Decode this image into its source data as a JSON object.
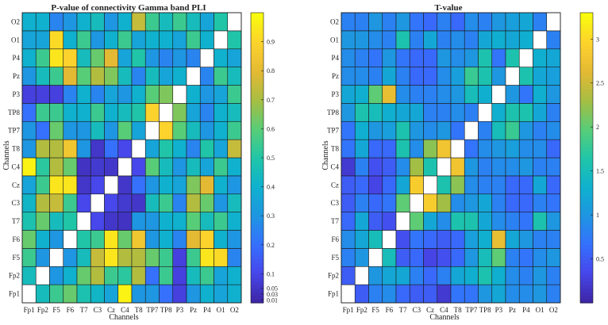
{
  "chart_data": [
    {
      "type": "heatmap",
      "title": "P-value of connectivity Gamma band PLI",
      "xlabel": "Channels",
      "ylabel": "Channels",
      "x_categories": [
        "Fp1",
        "Fp2",
        "F5",
        "F6",
        "T7",
        "C3",
        "Cz",
        "C4",
        "T8",
        "TP7",
        "TP8",
        "P3",
        "Pz",
        "P4",
        "O1",
        "O2"
      ],
      "y_categories": [
        "Fp1",
        "Fp2",
        "F5",
        "F6",
        "T7",
        "C3",
        "Cz",
        "C4",
        "T8",
        "TP7",
        "TP8",
        "P3",
        "Pz",
        "P4",
        "O1",
        "O2"
      ],
      "colorbar": {
        "range": [
          0,
          1
        ],
        "ticks": [
          0.01,
          0.03,
          0.05,
          0.1,
          0.2,
          0.3,
          0.4,
          0.5,
          0.6,
          0.7,
          0.8,
          0.9
        ],
        "tick_labels": [
          "0.01",
          "0.03",
          "0.05",
          "0.1",
          "0.2",
          "0.3",
          "0.4",
          "0.5",
          "0.6",
          "0.7",
          "0.8",
          "0.9"
        ]
      },
      "diagonal": "white",
      "values": [
        [
          1.0,
          0.45,
          0.55,
          0.62,
          0.48,
          0.42,
          0.35,
          0.98,
          0.3,
          0.3,
          0.2,
          0.08,
          0.3,
          0.4,
          0.35,
          0.4
        ],
        [
          0.45,
          1.0,
          0.3,
          0.4,
          0.62,
          0.72,
          0.55,
          0.52,
          0.72,
          0.2,
          0.55,
          0.08,
          0.45,
          0.55,
          0.35,
          0.4
        ],
        [
          0.55,
          0.3,
          1.0,
          0.3,
          0.45,
          0.75,
          0.95,
          0.72,
          0.72,
          0.62,
          0.55,
          0.08,
          0.55,
          0.95,
          0.92,
          0.25
        ],
        [
          0.62,
          0.4,
          0.3,
          1.0,
          0.5,
          0.55,
          0.95,
          0.62,
          0.85,
          0.3,
          0.4,
          0.25,
          0.8,
          0.9,
          0.4,
          0.3
        ],
        [
          0.48,
          0.62,
          0.45,
          0.5,
          1.0,
          0.1,
          0.05,
          0.04,
          0.3,
          0.3,
          0.4,
          0.4,
          0.6,
          0.45,
          0.55,
          0.4
        ],
        [
          0.42,
          0.72,
          0.75,
          0.55,
          0.1,
          1.0,
          0.1,
          0.06,
          0.05,
          0.45,
          0.55,
          0.25,
          0.72,
          0.62,
          0.3,
          0.45
        ],
        [
          0.35,
          0.55,
          0.95,
          0.95,
          0.05,
          0.1,
          1.0,
          0.05,
          0.2,
          0.3,
          0.4,
          0.35,
          0.65,
          0.8,
          0.4,
          0.3
        ],
        [
          0.98,
          0.52,
          0.72,
          0.62,
          0.04,
          0.06,
          0.05,
          1.0,
          0.1,
          0.6,
          0.45,
          0.3,
          0.45,
          0.35,
          0.55,
          0.4
        ],
        [
          0.3,
          0.72,
          0.72,
          0.85,
          0.3,
          0.05,
          0.2,
          0.1,
          1.0,
          0.35,
          0.5,
          0.4,
          0.25,
          0.5,
          0.35,
          0.75
        ],
        [
          0.3,
          0.2,
          0.62,
          0.3,
          0.3,
          0.45,
          0.3,
          0.6,
          0.35,
          1.0,
          0.9,
          0.6,
          0.45,
          0.3,
          0.4,
          0.55
        ],
        [
          0.2,
          0.55,
          0.55,
          0.4,
          0.4,
          0.55,
          0.4,
          0.45,
          0.5,
          0.9,
          1.0,
          0.65,
          0.35,
          0.25,
          0.4,
          0.45
        ],
        [
          0.08,
          0.08,
          0.08,
          0.25,
          0.4,
          0.25,
          0.35,
          0.3,
          0.4,
          0.6,
          0.65,
          1.0,
          0.4,
          0.3,
          0.35,
          0.55
        ],
        [
          0.3,
          0.45,
          0.55,
          0.8,
          0.6,
          0.72,
          0.65,
          0.45,
          0.25,
          0.45,
          0.35,
          0.4,
          1.0,
          0.25,
          0.55,
          0.45
        ],
        [
          0.4,
          0.55,
          0.95,
          0.9,
          0.45,
          0.62,
          0.8,
          0.35,
          0.5,
          0.3,
          0.25,
          0.3,
          0.25,
          1.0,
          0.4,
          0.35
        ],
        [
          0.35,
          0.35,
          0.92,
          0.4,
          0.55,
          0.3,
          0.4,
          0.55,
          0.35,
          0.4,
          0.4,
          0.35,
          0.55,
          0.4,
          1.0,
          0.5
        ],
        [
          0.4,
          0.4,
          0.25,
          0.3,
          0.4,
          0.45,
          0.3,
          0.4,
          0.75,
          0.55,
          0.45,
          0.55,
          0.45,
          0.35,
          0.5,
          1.0
        ]
      ]
    },
    {
      "type": "heatmap",
      "title": "T-value",
      "xlabel": "Channels",
      "ylabel": "Channels",
      "x_categories": [
        "Fp1",
        "Fp2",
        "F5",
        "F6",
        "T7",
        "C3",
        "Cz",
        "C4",
        "T8",
        "TP7",
        "TP8",
        "P3",
        "Pz",
        "P4",
        "O1",
        "O2"
      ],
      "y_categories": [
        "Fp1",
        "Fp2",
        "F5",
        "F6",
        "T7",
        "C3",
        "Cz",
        "C4",
        "T8",
        "TP7",
        "TP8",
        "P3",
        "Pz",
        "P4",
        "O1",
        "O2"
      ],
      "colorbar": {
        "range": [
          0,
          3.3
        ],
        "ticks": [
          0.5,
          1,
          1.5,
          2,
          2.5,
          3
        ],
        "tick_labels": [
          "0.5",
          "1",
          "1.5",
          "2",
          "2.5",
          "3"
        ]
      },
      "diagonal": "white",
      "values": [
        [
          3.3,
          0.5,
          0.8,
          0.9,
          0.6,
          0.5,
          0.5,
          0.2,
          0.7,
          0.7,
          1.0,
          1.2,
          0.9,
          0.9,
          1.0,
          0.8
        ],
        [
          0.5,
          3.3,
          1.0,
          1.2,
          1.2,
          0.8,
          0.6,
          0.8,
          1.2,
          1.3,
          1.6,
          1.3,
          0.9,
          0.8,
          1.0,
          0.8
        ],
        [
          0.8,
          1.0,
          3.3,
          1.5,
          0.5,
          0.6,
          0.3,
          0.4,
          0.6,
          1.0,
          1.5,
          2.0,
          0.8,
          0.7,
          0.9,
          1.0
        ],
        [
          0.9,
          1.2,
          1.5,
          3.3,
          0.4,
          0.7,
          0.6,
          0.5,
          0.6,
          1.1,
          1.3,
          2.7,
          1.2,
          1.0,
          0.8,
          0.8
        ],
        [
          0.6,
          1.2,
          0.5,
          0.4,
          3.3,
          2.0,
          1.2,
          0.9,
          1.6,
          1.6,
          1.2,
          0.9,
          0.8,
          0.7,
          1.6,
          1.0
        ],
        [
          0.5,
          0.8,
          0.6,
          0.7,
          2.0,
          3.3,
          2.9,
          2.3,
          0.9,
          1.0,
          1.2,
          0.8,
          0.6,
          0.6,
          0.8,
          0.7
        ],
        [
          0.5,
          0.6,
          0.3,
          0.6,
          1.2,
          2.9,
          3.3,
          1.6,
          2.2,
          0.9,
          0.8,
          0.8,
          0.6,
          0.6,
          1.2,
          0.6
        ],
        [
          0.2,
          0.8,
          0.4,
          0.5,
          0.9,
          2.3,
          1.6,
          3.3,
          2.8,
          1.0,
          0.8,
          0.9,
          0.9,
          1.0,
          0.8,
          0.8
        ],
        [
          0.7,
          1.2,
          0.6,
          0.6,
          1.6,
          0.9,
          2.2,
          2.8,
          3.3,
          0.7,
          0.9,
          1.0,
          1.1,
          0.9,
          0.9,
          0.6
        ],
        [
          0.7,
          1.3,
          1.0,
          1.1,
          1.6,
          1.0,
          0.9,
          1.0,
          0.7,
          3.3,
          0.8,
          1.5,
          1.8,
          1.0,
          0.8,
          0.9
        ],
        [
          1.0,
          1.6,
          1.5,
          1.3,
          1.2,
          1.2,
          0.8,
          0.8,
          0.9,
          0.8,
          3.3,
          1.3,
          1.6,
          1.6,
          1.2,
          0.8
        ],
        [
          1.2,
          1.3,
          2.0,
          2.7,
          0.9,
          0.8,
          0.8,
          0.9,
          1.0,
          1.5,
          1.3,
          3.3,
          1.0,
          0.7,
          1.3,
          1.0
        ],
        [
          0.9,
          0.9,
          0.8,
          1.2,
          0.8,
          0.6,
          0.6,
          0.9,
          1.1,
          1.8,
          1.6,
          1.0,
          3.3,
          1.6,
          1.2,
          1.1
        ],
        [
          0.9,
          0.8,
          0.7,
          1.0,
          0.7,
          0.6,
          0.6,
          1.0,
          0.9,
          1.0,
          1.6,
          0.7,
          1.6,
          3.3,
          1.3,
          1.2
        ],
        [
          1.0,
          1.0,
          0.9,
          0.8,
          1.6,
          0.8,
          1.2,
          0.8,
          0.9,
          0.8,
          1.2,
          1.3,
          1.2,
          1.3,
          3.3,
          0.8
        ],
        [
          0.8,
          0.8,
          1.0,
          0.8,
          1.0,
          0.7,
          0.6,
          0.8,
          0.6,
          0.9,
          0.8,
          1.0,
          1.1,
          1.2,
          0.8,
          3.3
        ]
      ]
    }
  ]
}
